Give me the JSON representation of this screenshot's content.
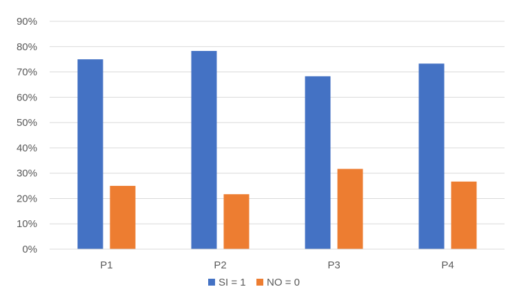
{
  "chart_data": {
    "type": "bar",
    "categories": [
      "P1",
      "P2",
      "P3",
      "P4"
    ],
    "series": [
      {
        "name": "SI = 1",
        "values": [
          75,
          78.3,
          68.3,
          73.3
        ],
        "color": "#4472C4"
      },
      {
        "name": "NO = 0",
        "values": [
          25,
          21.7,
          31.7,
          26.7
        ],
        "color": "#ED7D31"
      }
    ],
    "y_ticks": [
      "0%",
      "10%",
      "20%",
      "30%",
      "40%",
      "50%",
      "60%",
      "70%",
      "80%",
      "90%"
    ],
    "ylim": [
      0,
      90
    ],
    "grid": true,
    "legend_position": "bottom"
  }
}
